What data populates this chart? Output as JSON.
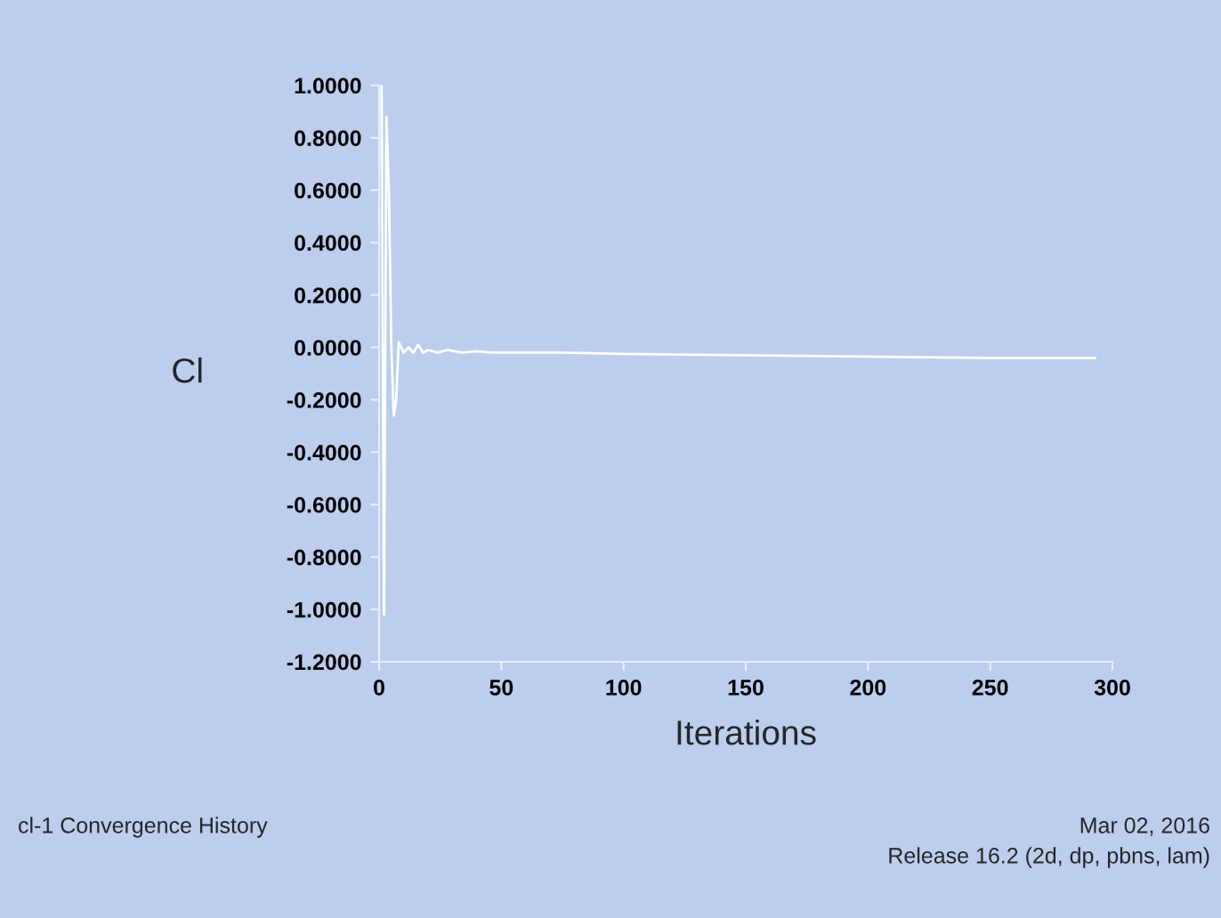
{
  "chart_data": {
    "type": "line",
    "xlabel": "Iterations",
    "ylabel": "Cl",
    "annotations": [
      "cl-1 Convergence History",
      "Mar 02, 2016",
      "Release 16.2 (2d, dp, pbns, lam)"
    ],
    "x": [
      1,
      2,
      3,
      4,
      5,
      6,
      7,
      8,
      10,
      12,
      14,
      16,
      18,
      20,
      24,
      28,
      34,
      40,
      46,
      50,
      60,
      75,
      100,
      150,
      200,
      250,
      293
    ],
    "series": [
      {
        "color": "#ffffff",
        "values": [
          1.0,
          -1.02,
          0.88,
          0.6,
          0.0,
          -0.26,
          -0.2,
          0.02,
          -0.02,
          0.0,
          -0.02,
          0.01,
          -0.02,
          -0.01,
          -0.02,
          -0.01,
          -0.02,
          -0.015,
          -0.02,
          -0.02,
          -0.02,
          -0.02,
          -0.025,
          -0.03,
          -0.035,
          -0.04,
          -0.04
        ]
      }
    ],
    "xlim": [
      0,
      300
    ],
    "xticks": [
      0,
      50,
      100,
      150,
      200,
      250,
      300
    ],
    "ylim": [
      -1.2,
      1.0
    ],
    "yticks": [
      {
        "value": 1.0,
        "label": "1.0000"
      },
      {
        "value": 0.8,
        "label": "0.8000"
      },
      {
        "value": 0.6,
        "label": "0.6000"
      },
      {
        "value": 0.4,
        "label": "0.4000"
      },
      {
        "value": 0.2,
        "label": "0.2000"
      },
      {
        "value": 0.0,
        "label": "0.0000"
      },
      {
        "value": -0.2,
        "label": "-0.2000"
      },
      {
        "value": -0.4,
        "label": "-0.4000"
      },
      {
        "value": -0.6,
        "label": "-0.6000"
      },
      {
        "value": -0.8,
        "label": "-0.8000"
      },
      {
        "value": -1.0,
        "label": "-1.0000"
      },
      {
        "value": -1.2,
        "label": "-1.2000"
      }
    ],
    "grid": false,
    "legend": false,
    "marker": "none",
    "line_style": "solid"
  }
}
